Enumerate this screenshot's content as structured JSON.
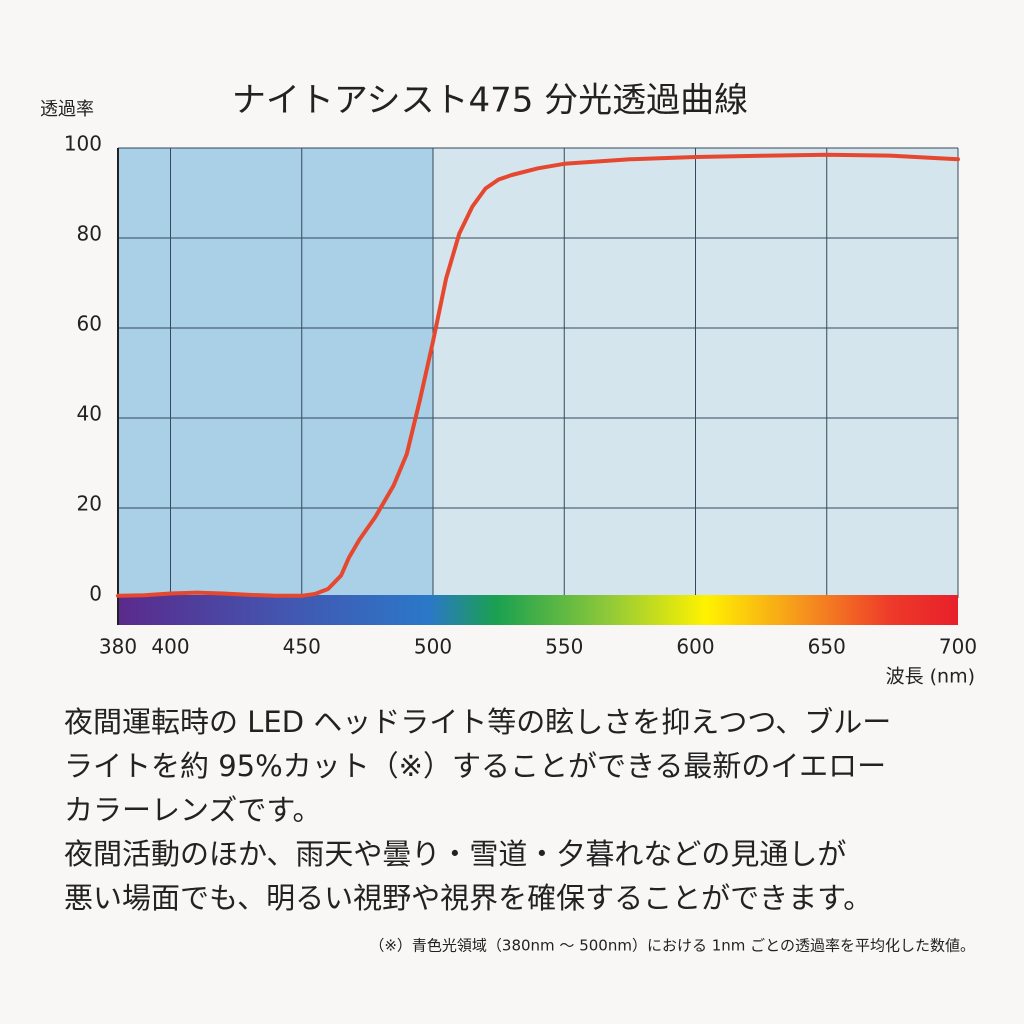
{
  "chart_data": {
    "type": "line",
    "title": "ナイトアシスト475 分光透過曲線",
    "y_label": "透過率",
    "x_label": "波長 (nm)",
    "x": [
      380,
      390,
      400,
      410,
      420,
      430,
      440,
      450,
      455,
      460,
      465,
      468,
      472,
      478,
      485,
      490,
      495,
      500,
      505,
      510,
      515,
      520,
      525,
      530,
      540,
      550,
      575,
      600,
      625,
      650,
      675,
      690,
      700
    ],
    "series": [
      {
        "color": "#e5482f",
        "values": [
          0.5,
          0.6,
          1,
          1.2,
          1,
          0.7,
          0.5,
          0.5,
          0.9,
          2,
          5,
          9,
          13,
          18,
          25,
          32,
          44,
          57,
          71,
          81,
          87,
          91,
          93,
          94,
          95.5,
          96.5,
          97.5,
          98,
          98.3,
          98.5,
          98.3,
          97.8,
          97.5
        ]
      }
    ],
    "xlim": [
      380,
      700
    ],
    "ylim": [
      0,
      100
    ],
    "xticks": [
      380,
      400,
      450,
      500,
      550,
      600,
      650,
      700
    ],
    "yticks": [
      0,
      20,
      40,
      60,
      80,
      100
    ],
    "shaded_region": [
      380,
      500
    ],
    "grid": true
  },
  "text": {
    "paragraph_lines": [
      "夜間運転時の LED ヘッドライト等の眩しさを抑えつつ、ブルー",
      "ライトを約 95%カット（※）することができる最新のイエロー",
      "カラーレンズです。",
      "夜間活動のほか、雨天や曇り・雪道・夕暮れなどの見通しが",
      "悪い場面でも、明るい視野や視界を確保することができます。"
    ],
    "footnote": "（※）青色光領域（380nm ～ 500nm）における 1nm ごとの透過率を平均化した数値。"
  }
}
